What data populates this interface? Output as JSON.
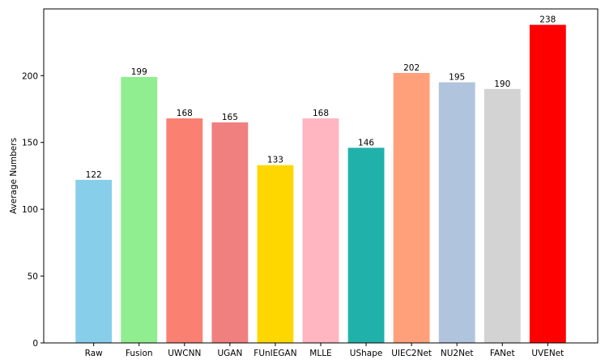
{
  "chart_data": {
    "type": "bar",
    "title": "",
    "xlabel": "",
    "ylabel": "Average Numbers",
    "categories": [
      "Raw",
      "Fusion",
      "UWCNN",
      "UGAN",
      "FUnIEGAN",
      "MLLE",
      "UShape",
      "UIEC2Net",
      "NU2Net",
      "FANet",
      "UVENet"
    ],
    "values": [
      122,
      199,
      168,
      165,
      133,
      168,
      146,
      202,
      195,
      190,
      238
    ],
    "colors": [
      "#87ceeb",
      "#90ee90",
      "#fa8072",
      "#f08080",
      "#ffd700",
      "#ffb6c1",
      "#20b2aa",
      "#ffa07a",
      "#b0c4de",
      "#d3d3d3",
      "#ff0000"
    ],
    "ylim": [
      0,
      249.9
    ],
    "yticks": [
      0,
      50,
      100,
      150,
      200
    ],
    "grid": false,
    "legend": "none",
    "data_labels": true
  }
}
